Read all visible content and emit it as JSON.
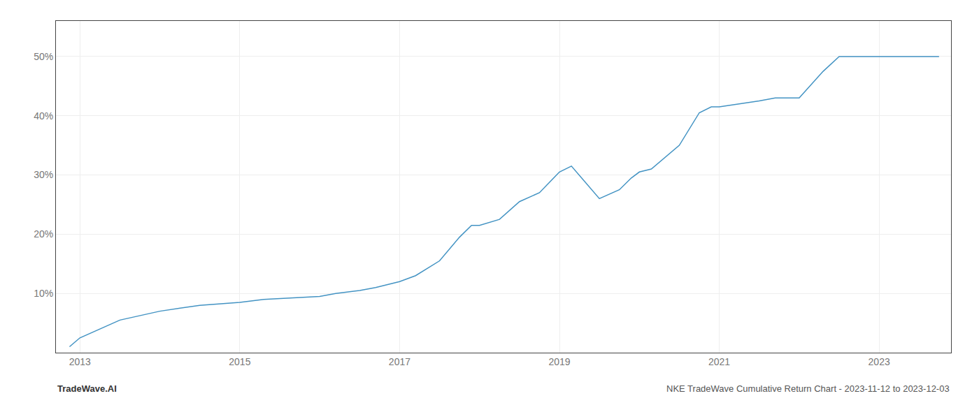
{
  "chart_data": {
    "type": "line",
    "x": [
      2012.87,
      2013.0,
      2013.5,
      2014.0,
      2014.5,
      2015.0,
      2015.3,
      2015.7,
      2016.0,
      2016.2,
      2016.5,
      2016.7,
      2017.0,
      2017.2,
      2017.5,
      2017.75,
      2017.9,
      2018.0,
      2018.25,
      2018.5,
      2018.75,
      2019.0,
      2019.15,
      2019.5,
      2019.75,
      2019.9,
      2020.0,
      2020.15,
      2020.5,
      2020.75,
      2020.9,
      2021.0,
      2021.25,
      2021.5,
      2021.7,
      2021.9,
      2022.0,
      2022.3,
      2022.5,
      2022.75,
      2023.0,
      2023.5,
      2023.75
    ],
    "values": [
      1.0,
      2.5,
      5.5,
      7.0,
      8.0,
      8.5,
      9.0,
      9.3,
      9.5,
      10.0,
      10.5,
      11.0,
      12.0,
      13.0,
      15.5,
      19.5,
      21.5,
      21.5,
      22.5,
      25.5,
      27.0,
      30.5,
      31.5,
      26.0,
      27.5,
      29.5,
      30.5,
      31.0,
      35.0,
      40.5,
      41.5,
      41.5,
      42.0,
      42.5,
      43.0,
      43.0,
      43.0,
      47.5,
      50.0,
      50.0,
      50.0,
      50.0,
      50.0
    ],
    "color": "#4393c3",
    "xlim": [
      2012.7,
      2023.9
    ],
    "ylim": [
      0,
      56
    ],
    "xticks": [
      2013,
      2015,
      2017,
      2019,
      2021,
      2023
    ],
    "yticks": [
      {
        "value": 10,
        "label": "10%"
      },
      {
        "value": 20,
        "label": "20%"
      },
      {
        "value": 30,
        "label": "30%"
      },
      {
        "value": 40,
        "label": "40%"
      },
      {
        "value": 50,
        "label": "50%"
      }
    ],
    "grid": true,
    "annotations": [
      "TradeWave.AI",
      "NKE TradeWave Cumulative Return Chart - 2023-11-12 to 2023-12-03"
    ]
  }
}
